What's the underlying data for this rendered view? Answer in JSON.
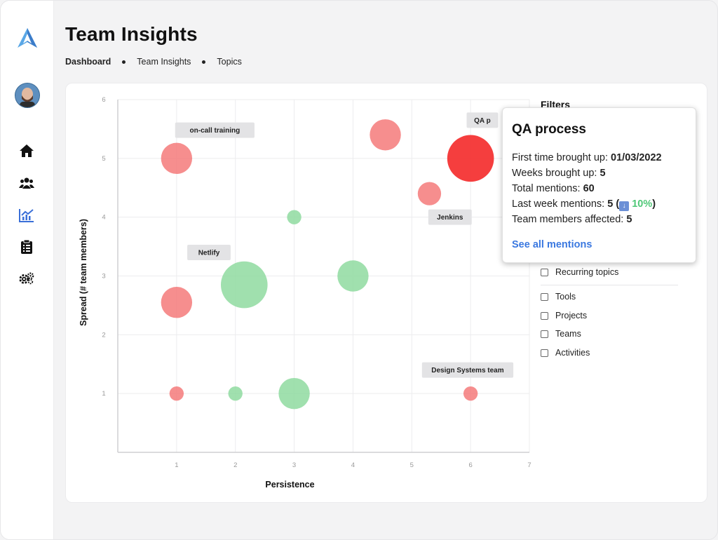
{
  "page": {
    "title": "Team Insights"
  },
  "breadcrumb": [
    "Dashboard",
    "Team Insights",
    "Topics"
  ],
  "nav": [
    "home-icon",
    "users-icon",
    "chart-icon",
    "clipboard-icon",
    "settings-icon"
  ],
  "filters": {
    "title": "Filters",
    "items": [
      "Recurring topics",
      "Tools",
      "Projects",
      "Teams",
      "Activities"
    ]
  },
  "tooltip": {
    "title": "QA process",
    "first_label": "First time brought up:",
    "first_value": "01/03/2022",
    "weeks_label": "Weeks brought up:",
    "weeks_value": "5",
    "total_label": "Total mentions:",
    "total_value": "60",
    "last_label": "Last week mentions:",
    "last_value": "5",
    "last_change": "10%",
    "affected_label": "Team members affected:",
    "affected_value": "5",
    "link": "See all mentions"
  },
  "colors": {
    "negative": "#f47a7a",
    "negative_strong": "#f43434",
    "positive": "#8fdaa0"
  },
  "chart_data": {
    "type": "scatter",
    "xlabel": "Persistence",
    "ylabel": "Spread (# team members)",
    "xlim": [
      0,
      7
    ],
    "ylim": [
      0,
      6
    ],
    "xticks": [
      1,
      2,
      3,
      4,
      5,
      6,
      7
    ],
    "yticks": [
      1,
      2,
      3,
      4,
      5,
      6
    ],
    "grid": true,
    "points": [
      {
        "x": 1,
        "y": 5,
        "size": 1.2,
        "kind": "negative"
      },
      {
        "x": 4.55,
        "y": 5.4,
        "size": 1.2,
        "kind": "negative"
      },
      {
        "x": 6,
        "y": 5,
        "size": 1.8,
        "kind": "negative_strong"
      },
      {
        "x": 5.3,
        "y": 4.4,
        "size": 0.9,
        "kind": "negative"
      },
      {
        "x": 3,
        "y": 4,
        "size": 0.55,
        "kind": "positive"
      },
      {
        "x": 2.15,
        "y": 2.85,
        "size": 1.8,
        "kind": "positive"
      },
      {
        "x": 4,
        "y": 3,
        "size": 1.2,
        "kind": "positive"
      },
      {
        "x": 1,
        "y": 2.55,
        "size": 1.2,
        "kind": "negative"
      },
      {
        "x": 1,
        "y": 1,
        "size": 0.55,
        "kind": "negative"
      },
      {
        "x": 2,
        "y": 1,
        "size": 0.55,
        "kind": "positive"
      },
      {
        "x": 3,
        "y": 1,
        "size": 1.2,
        "kind": "positive"
      },
      {
        "x": 6,
        "y": 1,
        "size": 0.55,
        "kind": "negative"
      }
    ],
    "labels": [
      {
        "text": "on-call training",
        "x": 1.65,
        "y": 5.48
      },
      {
        "text": "QA p",
        "x": 6.2,
        "y": 5.65
      },
      {
        "text": "Jenkins",
        "x": 5.65,
        "y": 4.0
      },
      {
        "text": "Netlify",
        "x": 1.55,
        "y": 3.4
      },
      {
        "text": "Design Systems team",
        "x": 5.95,
        "y": 1.4
      }
    ]
  }
}
